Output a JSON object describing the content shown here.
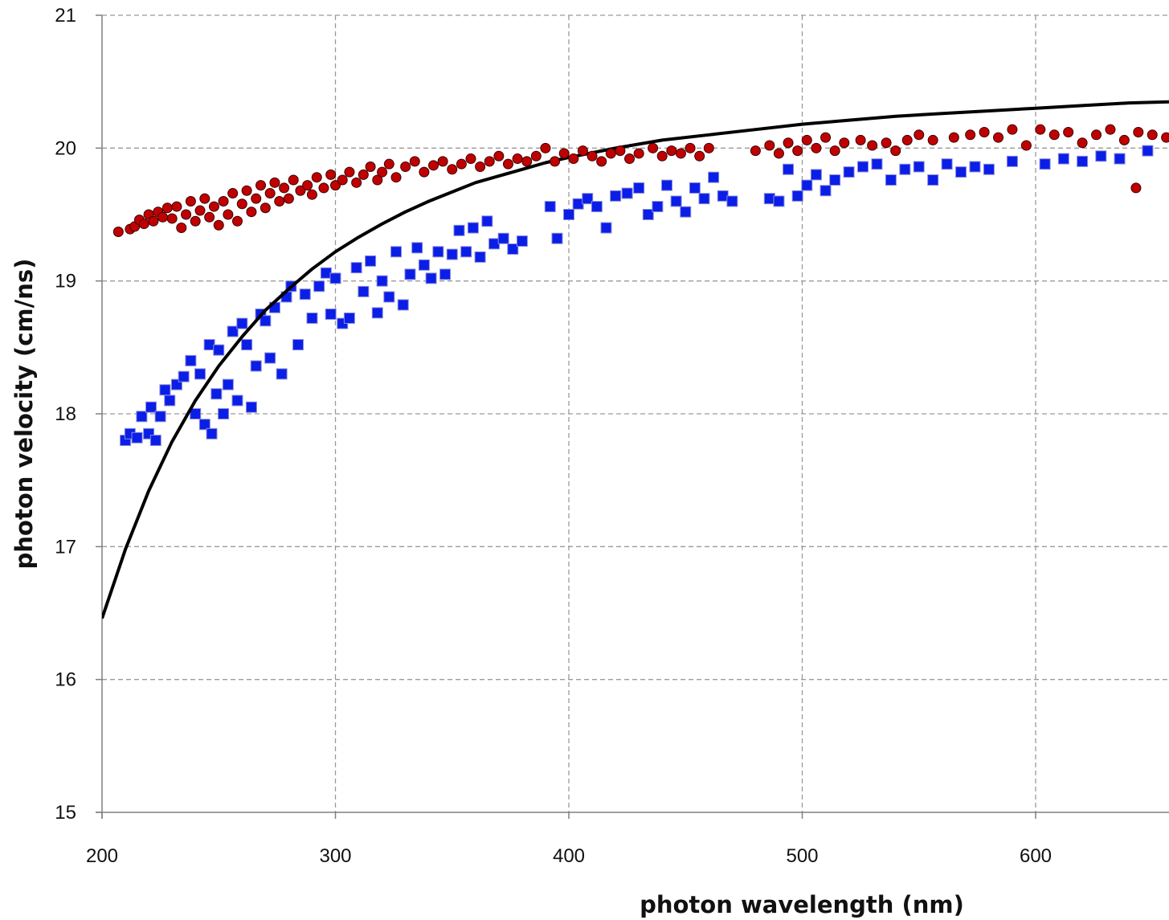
{
  "chart_data": {
    "type": "scatter",
    "title": "",
    "xlabel": "photon wavelength (nm)",
    "ylabel": "photon velocity (cm/ns)",
    "xlim": [
      200,
      660
    ],
    "ylim": [
      15,
      21
    ],
    "x_ticks": [
      200,
      300,
      400,
      500,
      600
    ],
    "y_ticks": [
      15,
      16,
      17,
      18,
      19,
      20,
      21
    ],
    "grid": true,
    "legend": "none",
    "colors": {
      "circles": "#c00000",
      "circles_outline": "#3a0000",
      "squares": "#0a1ee8",
      "squares_outline": "#8c8cd8",
      "curve": "#000000"
    },
    "series": [
      {
        "marker": "circle",
        "points": [
          [
            207,
            19.37
          ],
          [
            212,
            19.39
          ],
          [
            214,
            19.41
          ],
          [
            216,
            19.46
          ],
          [
            218,
            19.43
          ],
          [
            220,
            19.5
          ],
          [
            222,
            19.45
          ],
          [
            224,
            19.52
          ],
          [
            226,
            19.48
          ],
          [
            228,
            19.55
          ],
          [
            230,
            19.47
          ],
          [
            232,
            19.56
          ],
          [
            234,
            19.4
          ],
          [
            236,
            19.5
          ],
          [
            238,
            19.6
          ],
          [
            240,
            19.45
          ],
          [
            242,
            19.53
          ],
          [
            244,
            19.62
          ],
          [
            246,
            19.48
          ],
          [
            248,
            19.56
          ],
          [
            250,
            19.42
          ],
          [
            252,
            19.6
          ],
          [
            254,
            19.5
          ],
          [
            256,
            19.66
          ],
          [
            258,
            19.45
          ],
          [
            260,
            19.58
          ],
          [
            262,
            19.68
          ],
          [
            264,
            19.52
          ],
          [
            266,
            19.62
          ],
          [
            268,
            19.72
          ],
          [
            270,
            19.55
          ],
          [
            272,
            19.66
          ],
          [
            274,
            19.74
          ],
          [
            276,
            19.6
          ],
          [
            278,
            19.7
          ],
          [
            280,
            19.62
          ],
          [
            282,
            19.76
          ],
          [
            285,
            19.68
          ],
          [
            288,
            19.72
          ],
          [
            290,
            19.65
          ],
          [
            292,
            19.78
          ],
          [
            295,
            19.7
          ],
          [
            298,
            19.8
          ],
          [
            300,
            19.72
          ],
          [
            303,
            19.76
          ],
          [
            306,
            19.82
          ],
          [
            309,
            19.74
          ],
          [
            312,
            19.8
          ],
          [
            315,
            19.86
          ],
          [
            318,
            19.76
          ],
          [
            320,
            19.82
          ],
          [
            323,
            19.88
          ],
          [
            326,
            19.78
          ],
          [
            330,
            19.86
          ],
          [
            334,
            19.9
          ],
          [
            338,
            19.82
          ],
          [
            342,
            19.87
          ],
          [
            346,
            19.9
          ],
          [
            350,
            19.84
          ],
          [
            354,
            19.88
          ],
          [
            358,
            19.92
          ],
          [
            362,
            19.86
          ],
          [
            366,
            19.9
          ],
          [
            370,
            19.94
          ],
          [
            374,
            19.88
          ],
          [
            378,
            19.92
          ],
          [
            382,
            19.9
          ],
          [
            386,
            19.94
          ],
          [
            390,
            20.0
          ],
          [
            394,
            19.9
          ],
          [
            398,
            19.96
          ],
          [
            402,
            19.92
          ],
          [
            406,
            19.98
          ],
          [
            410,
            19.94
          ],
          [
            414,
            19.9
          ],
          [
            418,
            19.96
          ],
          [
            422,
            19.98
          ],
          [
            426,
            19.92
          ],
          [
            430,
            19.96
          ],
          [
            436,
            20.0
          ],
          [
            440,
            19.94
          ],
          [
            444,
            19.98
          ],
          [
            448,
            19.96
          ],
          [
            452,
            20.0
          ],
          [
            456,
            19.94
          ],
          [
            460,
            20.0
          ],
          [
            480,
            19.98
          ],
          [
            486,
            20.02
          ],
          [
            490,
            19.96
          ],
          [
            494,
            20.04
          ],
          [
            498,
            19.98
          ],
          [
            502,
            20.06
          ],
          [
            506,
            20.0
          ],
          [
            510,
            20.08
          ],
          [
            514,
            19.98
          ],
          [
            518,
            20.04
          ],
          [
            525,
            20.06
          ],
          [
            530,
            20.02
          ],
          [
            536,
            20.04
          ],
          [
            540,
            19.98
          ],
          [
            545,
            20.06
          ],
          [
            550,
            20.1
          ],
          [
            556,
            20.06
          ],
          [
            565,
            20.08
          ],
          [
            572,
            20.1
          ],
          [
            578,
            20.12
          ],
          [
            584,
            20.08
          ],
          [
            590,
            20.14
          ],
          [
            596,
            20.02
          ],
          [
            602,
            20.14
          ],
          [
            608,
            20.1
          ],
          [
            614,
            20.12
          ],
          [
            620,
            20.04
          ],
          [
            626,
            20.1
          ],
          [
            632,
            20.14
          ],
          [
            638,
            20.06
          ],
          [
            644,
            20.12
          ],
          [
            650,
            20.1
          ],
          [
            656,
            20.08
          ],
          [
            643,
            19.7
          ]
        ]
      },
      {
        "marker": "square",
        "points": [
          [
            210,
            17.8
          ],
          [
            212,
            17.85
          ],
          [
            215,
            17.82
          ],
          [
            217,
            17.98
          ],
          [
            220,
            17.85
          ],
          [
            221,
            18.05
          ],
          [
            223,
            17.8
          ],
          [
            225,
            17.98
          ],
          [
            227,
            18.18
          ],
          [
            229,
            18.1
          ],
          [
            232,
            18.22
          ],
          [
            235,
            18.28
          ],
          [
            238,
            18.4
          ],
          [
            240,
            18.0
          ],
          [
            242,
            18.3
          ],
          [
            244,
            17.92
          ],
          [
            246,
            18.52
          ],
          [
            247,
            17.85
          ],
          [
            249,
            18.15
          ],
          [
            250,
            18.48
          ],
          [
            252,
            18.0
          ],
          [
            254,
            18.22
          ],
          [
            256,
            18.62
          ],
          [
            258,
            18.1
          ],
          [
            260,
            18.68
          ],
          [
            262,
            18.52
          ],
          [
            264,
            18.05
          ],
          [
            266,
            18.36
          ],
          [
            268,
            18.75
          ],
          [
            270,
            18.7
          ],
          [
            272,
            18.42
          ],
          [
            274,
            18.8
          ],
          [
            277,
            18.3
          ],
          [
            279,
            18.88
          ],
          [
            281,
            18.96
          ],
          [
            284,
            18.52
          ],
          [
            287,
            18.9
          ],
          [
            290,
            18.72
          ],
          [
            293,
            18.96
          ],
          [
            296,
            19.06
          ],
          [
            298,
            18.75
          ],
          [
            300,
            19.02
          ],
          [
            303,
            18.68
          ],
          [
            306,
            18.72
          ],
          [
            309,
            19.1
          ],
          [
            312,
            18.92
          ],
          [
            315,
            19.15
          ],
          [
            318,
            18.76
          ],
          [
            320,
            19.0
          ],
          [
            323,
            18.88
          ],
          [
            326,
            19.22
          ],
          [
            329,
            18.82
          ],
          [
            332,
            19.05
          ],
          [
            335,
            19.25
          ],
          [
            338,
            19.12
          ],
          [
            341,
            19.02
          ],
          [
            344,
            19.22
          ],
          [
            347,
            19.05
          ],
          [
            350,
            19.2
          ],
          [
            353,
            19.38
          ],
          [
            356,
            19.22
          ],
          [
            359,
            19.4
          ],
          [
            362,
            19.18
          ],
          [
            365,
            19.45
          ],
          [
            368,
            19.28
          ],
          [
            372,
            19.32
          ],
          [
            376,
            19.24
          ],
          [
            380,
            19.3
          ],
          [
            392,
            19.56
          ],
          [
            395,
            19.32
          ],
          [
            400,
            19.5
          ],
          [
            404,
            19.58
          ],
          [
            408,
            19.62
          ],
          [
            412,
            19.56
          ],
          [
            416,
            19.4
          ],
          [
            420,
            19.64
          ],
          [
            425,
            19.66
          ],
          [
            430,
            19.7
          ],
          [
            434,
            19.5
          ],
          [
            438,
            19.56
          ],
          [
            442,
            19.72
          ],
          [
            446,
            19.6
          ],
          [
            450,
            19.52
          ],
          [
            454,
            19.7
          ],
          [
            458,
            19.62
          ],
          [
            462,
            19.78
          ],
          [
            466,
            19.64
          ],
          [
            470,
            19.6
          ],
          [
            486,
            19.62
          ],
          [
            490,
            19.6
          ],
          [
            494,
            19.84
          ],
          [
            498,
            19.64
          ],
          [
            502,
            19.72
          ],
          [
            506,
            19.8
          ],
          [
            510,
            19.68
          ],
          [
            514,
            19.76
          ],
          [
            520,
            19.82
          ],
          [
            526,
            19.86
          ],
          [
            532,
            19.88
          ],
          [
            538,
            19.76
          ],
          [
            544,
            19.84
          ],
          [
            550,
            19.86
          ],
          [
            556,
            19.76
          ],
          [
            562,
            19.88
          ],
          [
            568,
            19.82
          ],
          [
            574,
            19.86
          ],
          [
            580,
            19.84
          ],
          [
            590,
            19.9
          ],
          [
            604,
            19.88
          ],
          [
            612,
            19.92
          ],
          [
            620,
            19.9
          ],
          [
            628,
            19.94
          ],
          [
            636,
            19.92
          ],
          [
            648,
            19.98
          ]
        ]
      },
      {
        "marker": "line",
        "points": [
          [
            200,
            16.46
          ],
          [
            210,
            16.98
          ],
          [
            220,
            17.42
          ],
          [
            230,
            17.79
          ],
          [
            240,
            18.1
          ],
          [
            250,
            18.36
          ],
          [
            260,
            18.58
          ],
          [
            270,
            18.78
          ],
          [
            280,
            18.94
          ],
          [
            290,
            19.09
          ],
          [
            300,
            19.22
          ],
          [
            310,
            19.33
          ],
          [
            320,
            19.43
          ],
          [
            330,
            19.52
          ],
          [
            340,
            19.6
          ],
          [
            350,
            19.67
          ],
          [
            360,
            19.74
          ],
          [
            370,
            19.79
          ],
          [
            380,
            19.84
          ],
          [
            390,
            19.89
          ],
          [
            400,
            19.93
          ],
          [
            420,
            20.0
          ],
          [
            440,
            20.06
          ],
          [
            460,
            20.1
          ],
          [
            480,
            20.14
          ],
          [
            500,
            20.18
          ],
          [
            520,
            20.21
          ],
          [
            540,
            20.24
          ],
          [
            560,
            20.26
          ],
          [
            580,
            20.28
          ],
          [
            600,
            20.3
          ],
          [
            620,
            20.32
          ],
          [
            640,
            20.34
          ],
          [
            660,
            20.35
          ]
        ]
      }
    ]
  }
}
